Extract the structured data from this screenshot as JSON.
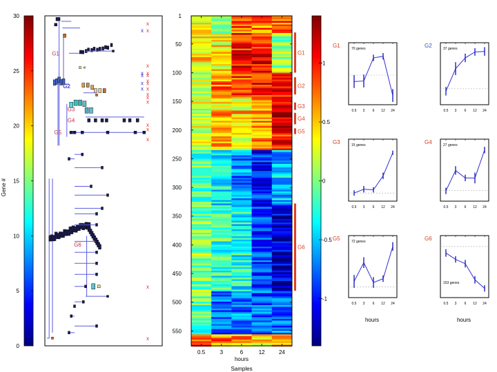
{
  "chart_data": [
    {
      "type": "tree",
      "name": "hierarchical-cluster-tree",
      "ylabel": "Gene #",
      "ylim": [
        0,
        30
      ],
      "yticks": [
        0,
        5,
        10,
        15,
        20,
        25,
        30
      ],
      "colorbar": {
        "ylim": [
          0,
          30
        ],
        "ticks": [
          0,
          5,
          10,
          15,
          20,
          25,
          30
        ],
        "colormap": "jet"
      },
      "cluster_labels": [
        {
          "label": "G1",
          "y": 26.6,
          "x": 0.12,
          "color": "#c0304a"
        },
        {
          "label": "G2",
          "y": 23.6,
          "x": 0.22,
          "color": "#4a4ad0",
          "large": true
        },
        {
          "label": "G3",
          "y": 21.5,
          "x": 0.26,
          "color": "#c0304a"
        },
        {
          "label": "G4",
          "y": 20.5,
          "x": 0.26,
          "color": "#c0304a"
        },
        {
          "label": "G5",
          "y": 19.4,
          "x": 0.14,
          "color": "#c0304a"
        },
        {
          "label": "G6",
          "y": 9.2,
          "x": 0.32,
          "color": "#c0304a"
        }
      ],
      "markers": [
        {
          "y": 29.3,
          "col": "red"
        },
        {
          "y": 28.7,
          "col": "red"
        },
        {
          "y": 28.7,
          "col": "blue"
        },
        {
          "y": 25.5,
          "col": "red"
        },
        {
          "y": 24.8,
          "col": "red"
        },
        {
          "y": 24.8,
          "col": "blue"
        },
        {
          "y": 24.6,
          "col": "red"
        },
        {
          "y": 24.6,
          "col": "blue"
        },
        {
          "y": 24.1,
          "col": "red"
        },
        {
          "y": 23.9,
          "col": "red"
        },
        {
          "y": 23.9,
          "col": "blue"
        },
        {
          "y": 23.4,
          "col": "red"
        },
        {
          "y": 23.4,
          "col": "blue"
        },
        {
          "y": 22.9,
          "col": "red"
        },
        {
          "y": 22.6,
          "col": "red"
        },
        {
          "y": 22.2,
          "col": "red"
        },
        {
          "y": 20.1,
          "col": "red"
        },
        {
          "y": 19.7,
          "col": "red"
        },
        {
          "y": 18.8,
          "col": "red"
        },
        {
          "y": 5.4,
          "col": "red"
        },
        {
          "y": 0.7,
          "col": "red"
        }
      ]
    },
    {
      "type": "heatmap",
      "name": "expression-heatmap",
      "xlabel": "hours",
      "subtitle": "Samples",
      "categories": [
        "0.5",
        "3",
        "6",
        "12",
        "24"
      ],
      "yticks": [
        1,
        50,
        100,
        150,
        200,
        250,
        300,
        350,
        400,
        450,
        500,
        550
      ],
      "n_rows": 575,
      "clim": [
        -1.4,
        1.4
      ],
      "colorbar_ticks": [
        1,
        0.5,
        0,
        -0.5,
        -1
      ],
      "row_blocks": [
        {
          "from": 1,
          "to": 30,
          "mean": [
            0.3,
            0.0,
            0.8,
            0.7,
            0.8
          ]
        },
        {
          "from": 30,
          "to": 100,
          "mean": [
            0.4,
            0.4,
            1.0,
            1.0,
            0.1
          ]
        },
        {
          "from": 100,
          "to": 140,
          "mean": [
            0.2,
            0.7,
            0.9,
            1.0,
            1.0
          ]
        },
        {
          "from": 140,
          "to": 165,
          "mean": [
            0.2,
            0.4,
            0.4,
            0.6,
            1.2
          ]
        },
        {
          "from": 165,
          "to": 195,
          "mean": [
            0.3,
            0.6,
            0.5,
            0.6,
            1.3
          ]
        },
        {
          "from": 195,
          "to": 235,
          "mean": [
            0.2,
            0.6,
            0.4,
            0.6,
            1.0
          ]
        },
        {
          "from": 235,
          "to": 330,
          "mean": [
            -0.1,
            -0.4,
            -0.7,
            -1.0,
            -0.5
          ]
        },
        {
          "from": 330,
          "to": 480,
          "mean": [
            0.0,
            -0.2,
            -0.3,
            -0.9,
            -1.2
          ]
        },
        {
          "from": 480,
          "to": 555,
          "mean": [
            -0.1,
            -0.8,
            -0.7,
            -0.8,
            -0.7
          ]
        },
        {
          "from": 555,
          "to": 575,
          "mean": [
            0.8,
            0.7,
            0.6,
            0.4,
            0.6
          ]
        }
      ],
      "groups": [
        {
          "label": "G1",
          "from": 30,
          "to": 100
        },
        {
          "label": "G2",
          "from": 108,
          "to": 138
        },
        {
          "label": "G3",
          "from": 152,
          "to": 165
        },
        {
          "label": "G4",
          "from": 170,
          "to": 190
        },
        {
          "label": "G5",
          "from": 197,
          "to": 207
        },
        {
          "label": "G6",
          "from": 328,
          "to": 480
        }
      ]
    },
    {
      "type": "line",
      "name": "cluster-profiles",
      "xlabel": "hours",
      "categories": [
        "0.5",
        "3",
        "6",
        "12",
        "24"
      ],
      "panels": [
        {
          "label": "G1",
          "label_color": "#d04020",
          "note": "70 genes",
          "baseline": 0.5,
          "values": [
            0.38,
            0.39,
            0.82,
            0.85,
            0.12
          ],
          "err": [
            0.12,
            0.12,
            0.06,
            0.06,
            0.12
          ]
        },
        {
          "label": "G2",
          "label_color": "#3050c0",
          "note": "37 genes",
          "baseline": 0.25,
          "values": [
            0.2,
            0.62,
            0.82,
            0.93,
            0.94
          ],
          "err": [
            0.08,
            0.12,
            0.08,
            0.07,
            0.08
          ]
        },
        {
          "label": "G3",
          "label_color": "#d04020",
          "note": "15 genes",
          "baseline": 0.1,
          "values": [
            0.1,
            0.17,
            0.16,
            0.42,
            0.85
          ],
          "err": [
            0.05,
            0.06,
            0.05,
            0.06,
            0.04
          ]
        },
        {
          "label": "G4",
          "label_color": "#d04020",
          "note": "27 genes",
          "baseline": 0.15,
          "values": [
            0.14,
            0.52,
            0.38,
            0.38,
            0.9
          ],
          "err": [
            0.06,
            0.08,
            0.06,
            0.1,
            0.06
          ]
        },
        {
          "label": "G5",
          "label_color": "#d04020",
          "note": "72 genes",
          "baseline": 0.15,
          "values": [
            0.25,
            0.6,
            0.23,
            0.3,
            0.9
          ],
          "err": [
            0.12,
            0.1,
            0.1,
            0.06,
            0.08
          ]
        },
        {
          "label": "G6",
          "label_color": "#d04020",
          "note": "153 genes",
          "baseline": 0.9,
          "values": [
            0.78,
            0.66,
            0.58,
            0.28,
            0.12
          ],
          "err": [
            0.07,
            0.06,
            0.07,
            0.07,
            0.06
          ]
        }
      ],
      "ylim": [
        0,
        1
      ]
    }
  ],
  "labels": {
    "tree_ylabel": "Gene #",
    "heat_xlabel": "hours",
    "heat_subtitle": "Samples",
    "small_xlabel": "hours"
  }
}
